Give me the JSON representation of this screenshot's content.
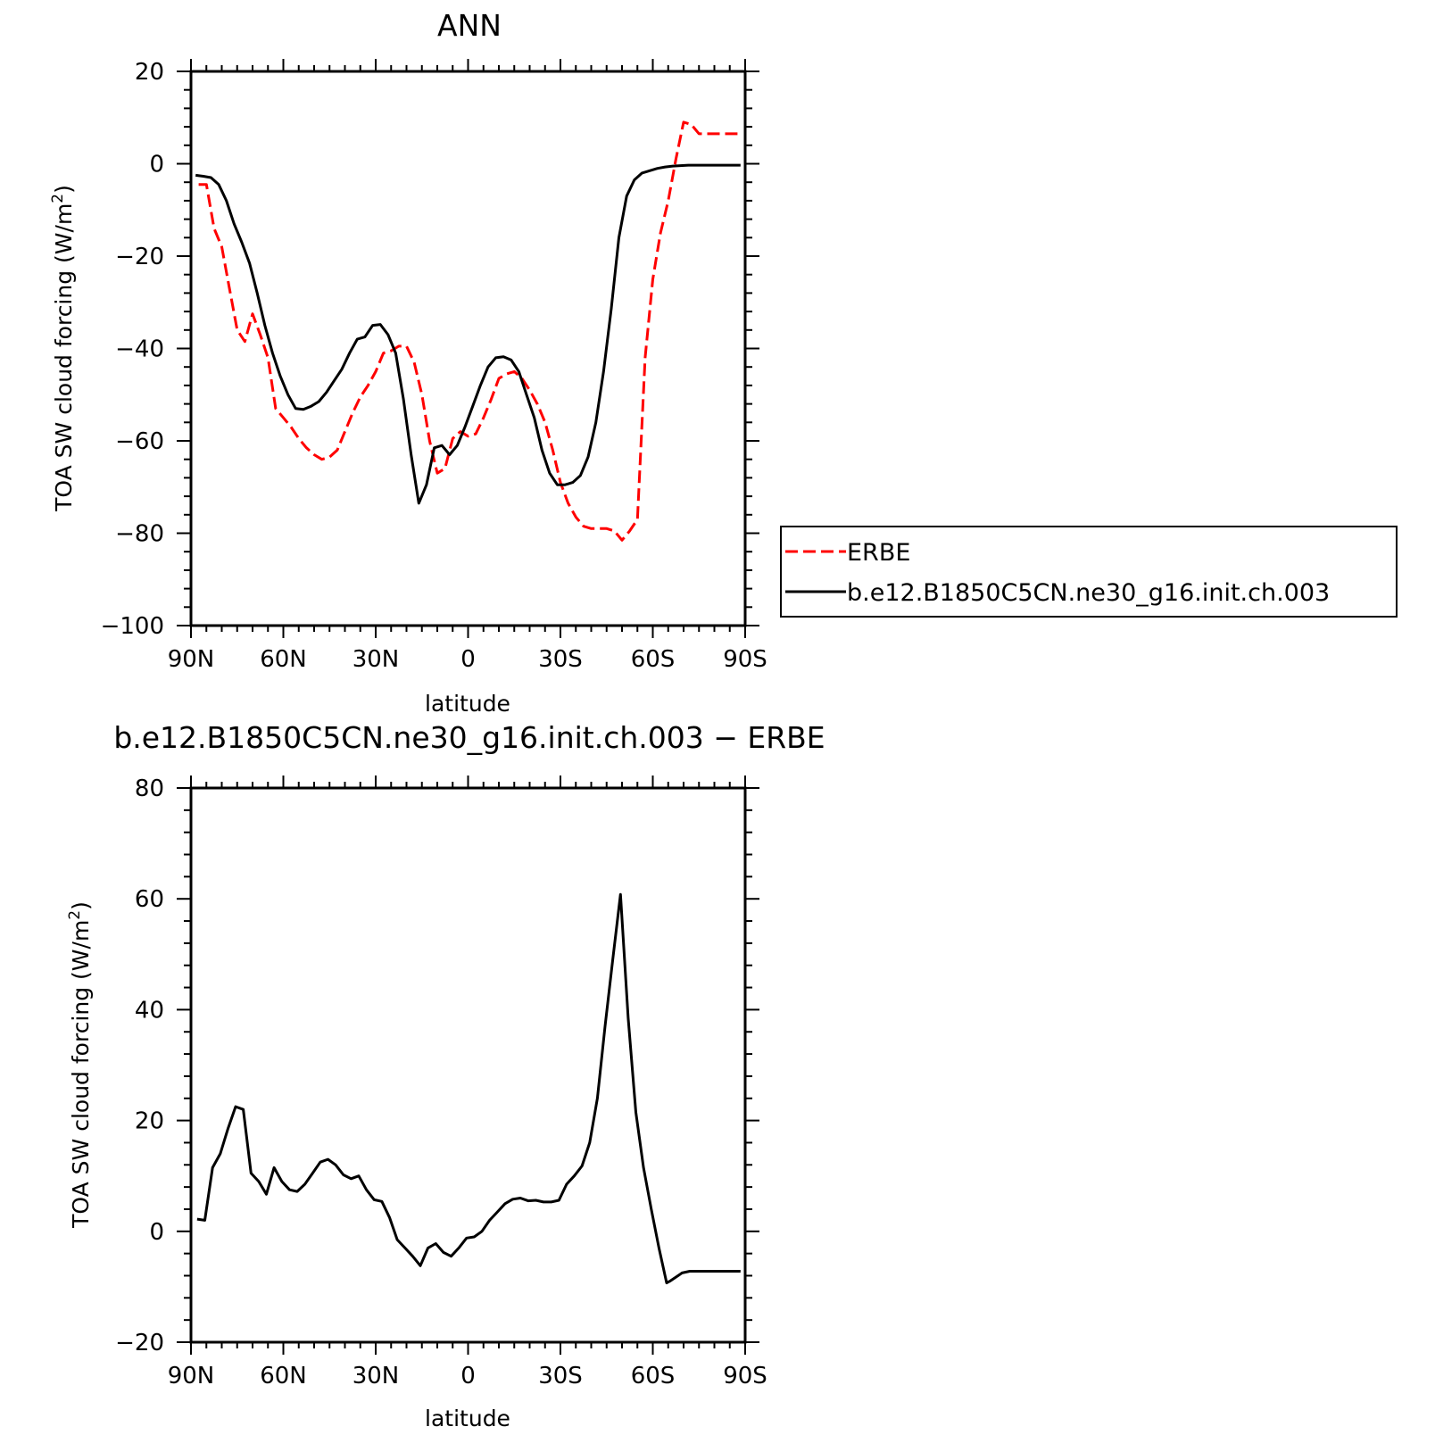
{
  "chart_data": [
    {
      "type": "line",
      "title": "ANN",
      "xlabel": "latitude",
      "ylabel": "TOA SW cloud forcing (W/m",
      "ylabel_sup": "2",
      "ylabel_close": ")",
      "xlim": [
        90,
        -90
      ],
      "ylim": [
        -100,
        20
      ],
      "x_ticks": [
        90,
        60,
        30,
        0,
        -30,
        -60,
        -90
      ],
      "x_tick_labels": [
        "90N",
        "60N",
        "30N",
        "0",
        "30S",
        "60S",
        "90S"
      ],
      "y_ticks": [
        -100,
        -80,
        -60,
        -40,
        -20,
        0,
        20
      ],
      "y_tick_labels": [
        "−100",
        "−80",
        "−60",
        "−40",
        "−20",
        "0",
        "20"
      ],
      "grid": false,
      "legend": "right",
      "series": [
        {
          "name": "ERBE",
          "color": "#ff0000",
          "dash": "dashed",
          "x": [
            87.5,
            85,
            82.5,
            80,
            77.5,
            75,
            72.5,
            70,
            67.5,
            65,
            62.5,
            60,
            57.5,
            55,
            52.5,
            50,
            47.5,
            45,
            42.5,
            40,
            37.5,
            35,
            32.5,
            30,
            27.5,
            25,
            22.5,
            20,
            17.5,
            15,
            12.5,
            10,
            7.5,
            5,
            2.5,
            0,
            -2.5,
            -5,
            -7.5,
            -10,
            -12.5,
            -15,
            -17.5,
            -20,
            -22.5,
            -25,
            -27.5,
            -30,
            -32.5,
            -35,
            -37.5,
            -40,
            -42.5,
            -45,
            -47.5,
            -50,
            -52.5,
            -55,
            -57.5,
            -60,
            -62.5,
            -65,
            -67.5,
            -70,
            -72.5,
            -75,
            -77.5,
            -80,
            -82.5,
            -85,
            -87.5
          ],
          "values": [
            -4.5,
            -4.5,
            -14,
            -18,
            -27,
            -36,
            -38.5,
            -32.5,
            -37,
            -42,
            -53,
            -55,
            -57,
            -59.5,
            -61.5,
            -63,
            -64,
            -63.5,
            -62,
            -58,
            -54,
            -50.5,
            -48,
            -45,
            -41,
            -40.5,
            -39.5,
            -39.5,
            -43,
            -50,
            -60,
            -67,
            -66,
            -59.5,
            -58,
            -59,
            -58.5,
            -55,
            -51,
            -46.5,
            -45.5,
            -45,
            -46.5,
            -49,
            -52,
            -56,
            -62,
            -69,
            -73.5,
            -76.5,
            -78.5,
            -79,
            -79,
            -79,
            -79.5,
            -81.5,
            -79.5,
            -77,
            -42,
            -25,
            -15,
            -8,
            1,
            9,
            8.5,
            6.5,
            6.5,
            6.5,
            6.5,
            6.5,
            6.5
          ]
        },
        {
          "name": "b.e12.B1850C5CN.ne30_g16.init.ch.003",
          "color": "#000000",
          "dash": "solid",
          "x": [
            88.5,
            86,
            83.5,
            81,
            78.5,
            76,
            73.5,
            71,
            68.5,
            66,
            63.5,
            61,
            58.5,
            56,
            53.5,
            51,
            48.5,
            46,
            43.5,
            41,
            38.5,
            36,
            33.5,
            31,
            28.5,
            26,
            23.5,
            21,
            18.5,
            16,
            13.5,
            11,
            8.5,
            6,
            3.5,
            1,
            -1.5,
            -4,
            -6.5,
            -9,
            -11.5,
            -14,
            -16.5,
            -19,
            -21.5,
            -24,
            -26.5,
            -29,
            -31.5,
            -34,
            -36.5,
            -39,
            -41.5,
            -44,
            -46.5,
            -49,
            -51.5,
            -54,
            -56.5,
            -59,
            -61.5,
            -64,
            -66.5,
            -69,
            -71.5,
            -74,
            -76.5,
            -79,
            -81.5,
            -84,
            -86.5,
            -88.5
          ],
          "values": [
            -2.5,
            -2.7,
            -3,
            -4.5,
            -8,
            -13,
            -17,
            -21.5,
            -28,
            -35,
            -41,
            -46,
            -50,
            -53,
            -53.2,
            -52.5,
            -51.5,
            -49.5,
            -47,
            -44.5,
            -41,
            -38,
            -37.5,
            -35,
            -34.8,
            -37,
            -41,
            -51,
            -63,
            -73.5,
            -69.5,
            -61.5,
            -61,
            -63,
            -61,
            -57,
            -52.5,
            -48,
            -44,
            -42,
            -41.8,
            -42.5,
            -45,
            -50,
            -55,
            -62,
            -67,
            -69.5,
            -69.5,
            -69,
            -67.5,
            -63.5,
            -56,
            -45,
            -31.5,
            -16,
            -7,
            -3.5,
            -2,
            -1.5,
            -1,
            -0.7,
            -0.5,
            -0.4,
            -0.3,
            -0.3,
            -0.3,
            -0.3,
            -0.3,
            -0.3,
            -0.3,
            -0.3
          ]
        }
      ]
    },
    {
      "type": "line",
      "title": "b.e12.B1850C5CN.ne30_g16.init.ch.003 − ERBE",
      "xlabel": "latitude",
      "ylabel": "TOA SW cloud forcing (W/m",
      "ylabel_sup": "2",
      "ylabel_close": ")",
      "xlim": [
        90,
        -90
      ],
      "ylim": [
        -20,
        80
      ],
      "x_ticks": [
        90,
        60,
        30,
        0,
        -30,
        -60,
        -90
      ],
      "x_tick_labels": [
        "90N",
        "60N",
        "30N",
        "0",
        "30S",
        "60S",
        "90S"
      ],
      "y_ticks": [
        -20,
        0,
        20,
        40,
        60,
        80
      ],
      "y_tick_labels": [
        "−20",
        "0",
        "20",
        "40",
        "60",
        "80"
      ],
      "grid": false,
      "series": [
        {
          "color": "#000000",
          "dash": "solid",
          "x": [
            88,
            85.5,
            83,
            80.5,
            78,
            75.5,
            73,
            70.5,
            68,
            65.5,
            63,
            60.5,
            58,
            55.5,
            53,
            50.5,
            48,
            45.5,
            43,
            40.5,
            38,
            35.5,
            33,
            30.5,
            28,
            25.5,
            23,
            20.5,
            18,
            15.5,
            13,
            10.5,
            8,
            5.5,
            3,
            0.5,
            -2,
            -4.5,
            -7,
            -9.5,
            -12,
            -14.5,
            -17,
            -19.5,
            -22,
            -24.5,
            -27,
            -29.5,
            -32,
            -34.5,
            -37,
            -39.5,
            -42,
            -44.5,
            -47,
            -49.5,
            -52,
            -54.5,
            -57,
            -59.5,
            -62,
            -64.5,
            -65.5,
            -69.5,
            -72,
            -74.5,
            -77,
            -79.5,
            -82,
            -84.5,
            -87,
            -88.5
          ],
          "values": [
            2.2,
            2,
            11.5,
            14,
            18.5,
            22.5,
            22,
            10.5,
            9,
            6.7,
            11.5,
            9,
            7.5,
            7.2,
            8.5,
            10.5,
            12.5,
            13,
            12,
            10.2,
            9.5,
            10,
            7.5,
            5.7,
            5.4,
            2.5,
            -1.5,
            -3,
            -4.5,
            -6.2,
            -3,
            -2.2,
            -3.8,
            -4.5,
            -3,
            -1.2,
            -1,
            0,
            2,
            3.5,
            5,
            5.8,
            6,
            5.5,
            5.6,
            5.3,
            5.3,
            5.6,
            8.5,
            10,
            11.8,
            16,
            24,
            37,
            49,
            60.8,
            38.5,
            21.5,
            11.5,
            4,
            -3,
            -9.3,
            -9,
            -7.5,
            -7.2,
            -7.2,
            -7.2,
            -7.2,
            -7.2,
            -7.2,
            -7.2,
            -7.2
          ]
        }
      ]
    }
  ]
}
